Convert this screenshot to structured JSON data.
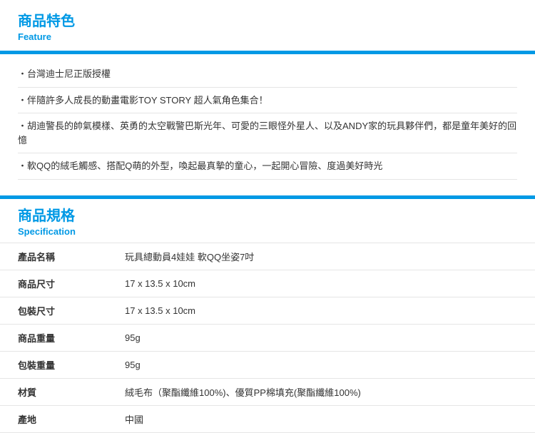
{
  "colors": {
    "accent": "#0099e5",
    "text": "#333333",
    "border": "#e5e5e5",
    "background": "#ffffff"
  },
  "feature": {
    "title": "商品特色",
    "subtitle": "Feature",
    "items": [
      "台灣迪士尼正版授權",
      "伴隨許多人成長的動畫電影TOY STORY 超人氣角色集合！",
      "胡迪警長的帥氣模樣、英勇的太空戰警巴斯光年、可愛的三眼怪外星人、以及ANDY家的玩具夥伴們，都是童年美好的回憶",
      "軟QQ的絨毛觸感、搭配Q萌的外型，喚起最真摯的童心，一起開心冒險、度過美好時光"
    ]
  },
  "spec": {
    "title": "商品規格",
    "subtitle": "Specification",
    "rows": [
      {
        "label": "產品名稱",
        "value": "玩具總動員4娃娃 軟QQ坐姿7吋"
      },
      {
        "label": "商品尺寸",
        "value": "17 x 13.5 x 10cm"
      },
      {
        "label": "包裝尺寸",
        "value": "17 x 13.5 x 10cm"
      },
      {
        "label": "商品重量",
        "value": "95g"
      },
      {
        "label": "包裝重量",
        "value": "95g"
      },
      {
        "label": "材質",
        "value": "絨毛布（聚酯纖維100%)、優質PP棉填充(聚酯纖維100%)"
      },
      {
        "label": "產地",
        "value": "中國"
      }
    ]
  }
}
